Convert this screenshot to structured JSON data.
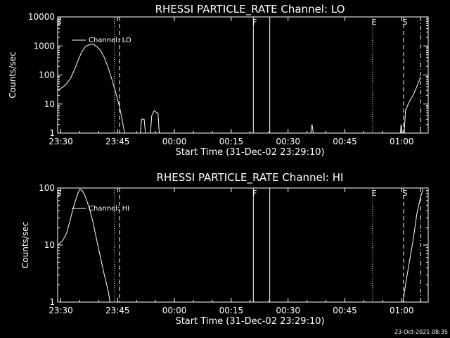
{
  "footer": {
    "timestamp": "23-Oct-2021 08:35"
  },
  "chart_data": [
    {
      "type": "line",
      "title": "RHESSI PARTICLE_RATE Channel: LO",
      "xlabel": "Start Time (31-Dec-02 23:29:10)",
      "ylabel": "Counts/sec",
      "y_scale": "log",
      "ylim": [
        1,
        10000
      ],
      "xlim": [
        "23:29:10",
        "01:07:00"
      ],
      "x_ticks": [
        "23:30",
        "23:45",
        "00:00",
        "00:15",
        "00:30",
        "00:45",
        "01:00"
      ],
      "y_ticks": [
        "1",
        "10",
        "100",
        "1000",
        "10000"
      ],
      "legend": {
        "label": "Channel: LO",
        "placement": "top-left"
      },
      "grid": false,
      "markers": [
        {
          "label": "S",
          "time": "23:29:10",
          "style": "solid"
        },
        {
          "label": "",
          "time": "23:44:10",
          "style": "dotted"
        },
        {
          "label": "",
          "time": "23:45:30",
          "style": "dashed"
        },
        {
          "label": "F",
          "time": "00:20:50",
          "style": "solid"
        },
        {
          "label": "",
          "time": "00:25:10",
          "style": "solid"
        },
        {
          "label": "E",
          "time": "00:52:20",
          "style": "dotted"
        },
        {
          "label": "S",
          "time": "01:00:30",
          "style": "dashed"
        },
        {
          "label": "",
          "time": "01:05:00",
          "style": "dashdot"
        }
      ],
      "series": [
        {
          "segments": [
            [
              [
                "23:29:10",
                30
              ],
              [
                "23:30:30",
                38
              ],
              [
                "23:31:30",
                50
              ],
              [
                "23:32:30",
                75
              ],
              [
                "23:33:30",
                140
              ],
              [
                "23:34:30",
                300
              ],
              [
                "23:35:30",
                620
              ],
              [
                "23:36:30",
                950
              ],
              [
                "23:37:30",
                1100
              ],
              [
                "23:38:30",
                1150
              ],
              [
                "23:39:30",
                950
              ],
              [
                "23:40:30",
                700
              ],
              [
                "23:41:30",
                400
              ],
              [
                "23:42:30",
                180
              ],
              [
                "23:43:30",
                70
              ],
              [
                "23:44:30",
                25
              ],
              [
                "23:45:30",
                8
              ],
              [
                "23:46:10",
                3
              ],
              [
                "23:46:40",
                1.3
              ],
              [
                "23:46:55",
                1
              ]
            ],
            [
              [
                "23:51:00",
                1
              ],
              [
                "23:51:20",
                3
              ],
              [
                "23:52:00",
                3
              ],
              [
                "23:52:20",
                1
              ]
            ],
            [
              [
                "23:53:40",
                1
              ],
              [
                "23:54:00",
                4
              ],
              [
                "23:54:40",
                6
              ],
              [
                "23:55:20",
                5
              ],
              [
                "23:55:40",
                5
              ],
              [
                "23:56:00",
                1
              ]
            ],
            [
              [
                "00:36:00",
                1
              ],
              [
                "00:36:20",
                2
              ],
              [
                "00:36:40",
                1
              ]
            ],
            [
              [
                "00:59:40",
                1
              ],
              [
                "00:59:50",
                2
              ],
              [
                "01:00:10",
                1
              ]
            ],
            [
              [
                "01:00:40",
                1
              ],
              [
                "01:01:00",
                6
              ],
              [
                "01:02:00",
                12
              ],
              [
                "01:03:00",
                20
              ],
              [
                "01:04:00",
                40
              ],
              [
                "01:05:00",
                85
              ]
            ]
          ]
        }
      ]
    },
    {
      "type": "line",
      "title": "RHESSI PARTICLE_RATE Channel: HI",
      "xlabel": "Start Time (31-Dec-02 23:29:10)",
      "ylabel": "Counts/sec",
      "y_scale": "log",
      "ylim": [
        1,
        100
      ],
      "xlim": [
        "23:29:10",
        "01:07:00"
      ],
      "x_ticks": [
        "23:30",
        "23:45",
        "00:00",
        "00:15",
        "00:30",
        "00:45",
        "01:00"
      ],
      "y_ticks": [
        "1",
        "10",
        "100"
      ],
      "legend": {
        "label": "Channel: HI",
        "placement": "top-left"
      },
      "grid": false,
      "markers": [
        {
          "label": "S",
          "time": "23:29:10",
          "style": "solid"
        },
        {
          "label": "",
          "time": "23:44:10",
          "style": "dotted"
        },
        {
          "label": "",
          "time": "23:45:30",
          "style": "dashed"
        },
        {
          "label": "F",
          "time": "00:20:50",
          "style": "solid"
        },
        {
          "label": "",
          "time": "00:25:10",
          "style": "solid"
        },
        {
          "label": "E",
          "time": "00:52:20",
          "style": "dotted"
        },
        {
          "label": "S",
          "time": "01:00:30",
          "style": "dashed"
        },
        {
          "label": "",
          "time": "01:05:00",
          "style": "dashdot"
        }
      ],
      "series": [
        {
          "segments": [
            [
              [
                "23:29:10",
                10
              ],
              [
                "23:30:30",
                12
              ],
              [
                "23:31:30",
                16
              ],
              [
                "23:32:30",
                28
              ],
              [
                "23:33:30",
                50
              ],
              [
                "23:34:30",
                80
              ],
              [
                "23:35:00",
                95
              ],
              [
                "23:35:40",
                90
              ],
              [
                "23:36:30",
                70
              ],
              [
                "23:37:30",
                45
              ],
              [
                "23:38:30",
                25
              ],
              [
                "23:39:30",
                12
              ],
              [
                "23:40:30",
                6
              ],
              [
                "23:41:30",
                3
              ],
              [
                "23:42:30",
                1.6
              ],
              [
                "23:43:00",
                1
              ]
            ],
            [
              [
                "01:00:20",
                1
              ],
              [
                "01:01:00",
                2
              ],
              [
                "01:02:00",
                5
              ],
              [
                "01:03:00",
                12
              ],
              [
                "01:04:00",
                35
              ],
              [
                "01:05:00",
                70
              ],
              [
                "01:05:40",
                95
              ]
            ]
          ]
        }
      ]
    }
  ]
}
